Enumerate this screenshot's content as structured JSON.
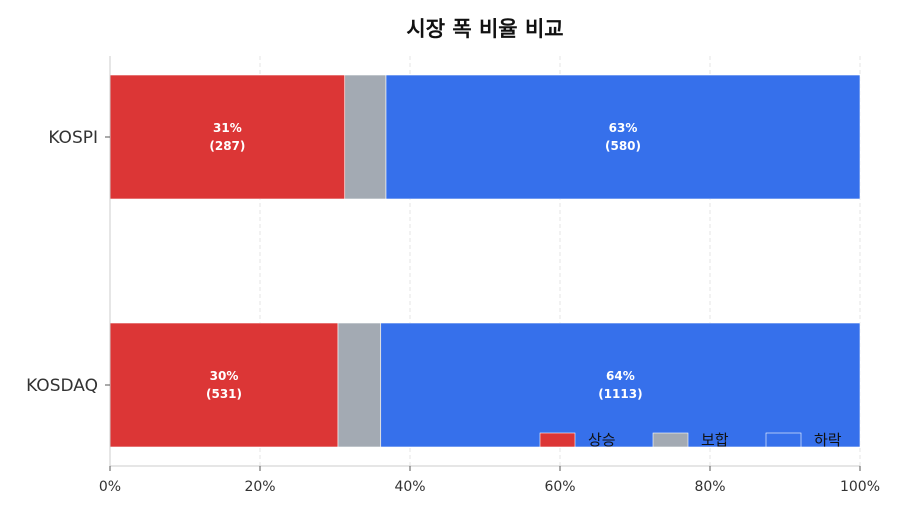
{
  "chart_data": {
    "type": "bar",
    "orientation": "horizontal",
    "stacked": true,
    "title": "시장 폭 비율 비교",
    "xlabel": "",
    "ylabel": "",
    "xlim": [
      0,
      100
    ],
    "x_ticks": [
      "0%",
      "20%",
      "40%",
      "60%",
      "80%",
      "100%"
    ],
    "grid": "vertical dashed",
    "legend_position": "bottom-right",
    "categories": [
      "KOSPI",
      "KOSDAQ"
    ],
    "series": [
      {
        "name": "상승",
        "color": "#dc3636",
        "values": [
          31.3,
          30.4
        ],
        "labels": [
          [
            "31%",
            "(287)"
          ],
          [
            "30%",
            "(531)"
          ]
        ]
      },
      {
        "name": "보합",
        "color": "#a3aab3",
        "values": [
          5.5,
          5.7
        ],
        "labels": [
          null,
          null
        ]
      },
      {
        "name": "하락",
        "color": "#3670eb",
        "values": [
          63.2,
          63.9
        ],
        "labels": [
          [
            "63%",
            "(580)"
          ],
          [
            "64%",
            "(1113)"
          ]
        ]
      }
    ]
  }
}
